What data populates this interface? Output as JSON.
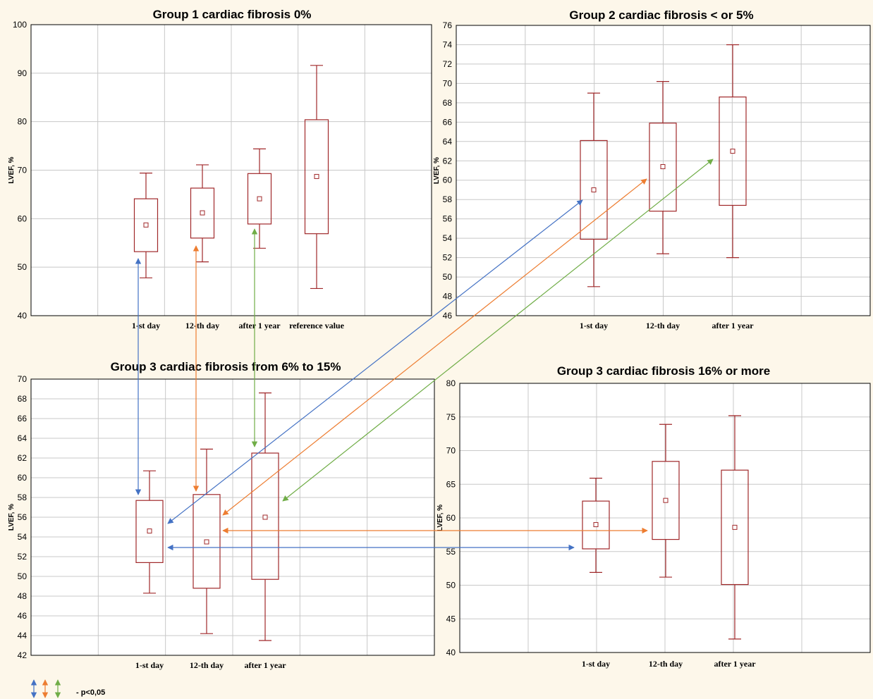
{
  "chart_data": [
    {
      "type": "box",
      "title": "Group 1 cardiac fibrosis 0%",
      "ylabel": "LVEF, %",
      "ylim": [
        40,
        100
      ],
      "yticks": [
        40,
        50,
        60,
        70,
        80,
        90,
        100
      ],
      "categories": [
        "1-st day",
        "12-th day",
        "after 1 year",
        "reference value"
      ],
      "boxes": [
        {
          "min": 47.8,
          "q1": 53.2,
          "mean": 58.7,
          "q3": 64.1,
          "max": 69.4
        },
        {
          "min": 51.1,
          "q1": 56.0,
          "mean": 61.2,
          "q3": 66.3,
          "max": 71.1
        },
        {
          "min": 53.9,
          "q1": 58.9,
          "mean": 64.1,
          "q3": 69.3,
          "max": 74.4
        },
        {
          "min": 45.6,
          "q1": 56.9,
          "mean": 68.7,
          "q3": 80.4,
          "max": 91.6
        }
      ]
    },
    {
      "type": "box",
      "title": "Group 2 cardiac fibrosis < or 5%",
      "ylabel": "LVEF, %",
      "ylim": [
        46,
        76
      ],
      "yticks": [
        46,
        48,
        50,
        52,
        54,
        56,
        58,
        60,
        62,
        64,
        66,
        68,
        70,
        72,
        74,
        76
      ],
      "categories": [
        "1-st day",
        "12-th day",
        "after 1 year"
      ],
      "boxes": [
        {
          "min": 49.0,
          "q1": 53.9,
          "mean": 59.0,
          "q3": 64.1,
          "max": 69.0
        },
        {
          "min": 52.4,
          "q1": 56.8,
          "mean": 61.4,
          "q3": 65.9,
          "max": 70.2
        },
        {
          "min": 52.0,
          "q1": 57.4,
          "mean": 63.0,
          "q3": 68.6,
          "max": 74.0
        }
      ]
    },
    {
      "type": "box",
      "title": "Group 3 cardiac fibrosis from 6% to 15%",
      "ylabel": "LVEF, %",
      "ylim": [
        42,
        70
      ],
      "yticks": [
        42,
        44,
        46,
        48,
        50,
        52,
        54,
        56,
        58,
        60,
        62,
        64,
        66,
        68,
        70
      ],
      "categories": [
        "1-st day",
        "12-th day",
        "after 1 year"
      ],
      "boxes": [
        {
          "min": 48.3,
          "q1": 51.4,
          "mean": 54.6,
          "q3": 57.7,
          "max": 60.7
        },
        {
          "min": 44.2,
          "q1": 48.8,
          "mean": 53.5,
          "q3": 58.3,
          "max": 62.9
        },
        {
          "min": 43.5,
          "q1": 49.7,
          "mean": 56.0,
          "q3": 62.5,
          "max": 68.6
        }
      ]
    },
    {
      "type": "box",
      "title": "Group 3 cardiac fibrosis 16% or more",
      "ylabel": "LVEF, %",
      "ylim": [
        40,
        80
      ],
      "yticks": [
        40,
        45,
        50,
        55,
        60,
        65,
        70,
        75,
        80
      ],
      "categories": [
        "1-st day",
        "12-th day",
        "after 1 year"
      ],
      "boxes": [
        {
          "min": 51.9,
          "q1": 55.4,
          "mean": 59.0,
          "q3": 62.5,
          "max": 65.9
        },
        {
          "min": 51.2,
          "q1": 56.8,
          "mean": 62.6,
          "q3": 68.4,
          "max": 73.9
        },
        {
          "min": 42.0,
          "q1": 50.1,
          "mean": 58.6,
          "q3": 67.1,
          "max": 75.2
        }
      ]
    }
  ],
  "legend": {
    "label": "- p<0,05",
    "arrow_colors": [
      "#4472c4",
      "#ed7d31",
      "#70ad47"
    ]
  },
  "colors": {
    "box": "#a0282a",
    "grid": "#c8c8c8",
    "background": "#fdf7ea"
  }
}
